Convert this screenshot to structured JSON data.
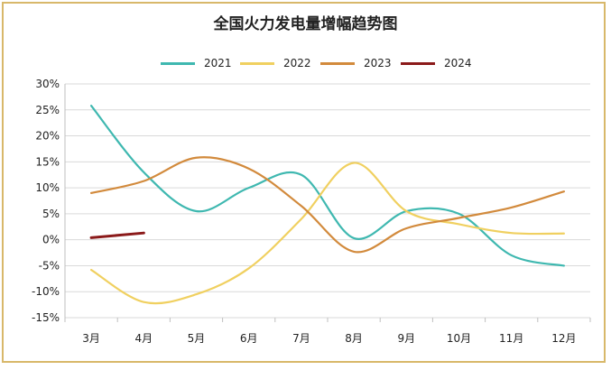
{
  "chart_data": {
    "type": "line",
    "title": "全国火力发电量增幅趋势图",
    "categories": [
      "3月",
      "4月",
      "5月",
      "6月",
      "7月",
      "8月",
      "9月",
      "10月",
      "11月",
      "12月"
    ],
    "y_ticks": [
      "30%",
      "25%",
      "20%",
      "15%",
      "10%",
      "5%",
      "0%",
      "-5%",
      "-10%",
      "-15%"
    ],
    "ylim": [
      -15,
      30
    ],
    "grid": true,
    "legend_position": "top",
    "series": [
      {
        "name": "2021",
        "color": "#3fb8b0",
        "values": [
          25.8,
          13.0,
          5.5,
          10.0,
          12.5,
          0.3,
          5.5,
          5.0,
          -3.0,
          -5.0
        ]
      },
      {
        "name": "2022",
        "color": "#f0d060",
        "values": [
          -5.8,
          -12.0,
          -10.5,
          -5.5,
          4.0,
          14.8,
          5.5,
          3.0,
          1.3,
          1.2
        ]
      },
      {
        "name": "2023",
        "color": "#d28a3c",
        "values": [
          9.0,
          11.3,
          15.8,
          13.7,
          6.5,
          -2.3,
          2.2,
          4.2,
          6.2,
          9.3
        ]
      },
      {
        "name": "2024",
        "color": "#8b1a1a",
        "values": [
          0.4,
          1.3,
          null,
          null,
          null,
          null,
          null,
          null,
          null,
          null
        ]
      }
    ]
  }
}
